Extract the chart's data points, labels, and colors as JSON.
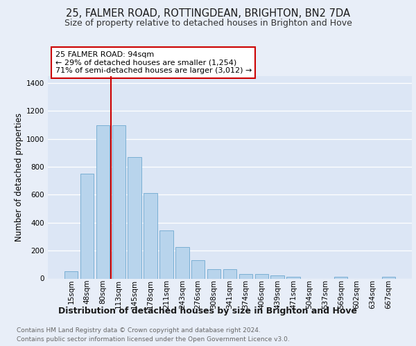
{
  "title": "25, FALMER ROAD, ROTTINGDEAN, BRIGHTON, BN2 7DA",
  "subtitle": "Size of property relative to detached houses in Brighton and Hove",
  "xlabel": "Distribution of detached houses by size in Brighton and Hove",
  "ylabel": "Number of detached properties",
  "footnote1": "Contains HM Land Registry data © Crown copyright and database right 2024.",
  "footnote2": "Contains public sector information licensed under the Open Government Licence v3.0.",
  "categories": [
    "15sqm",
    "48sqm",
    "80sqm",
    "113sqm",
    "145sqm",
    "178sqm",
    "211sqm",
    "243sqm",
    "276sqm",
    "308sqm",
    "341sqm",
    "374sqm",
    "406sqm",
    "439sqm",
    "471sqm",
    "504sqm",
    "537sqm",
    "569sqm",
    "602sqm",
    "634sqm",
    "667sqm"
  ],
  "values": [
    50,
    750,
    1100,
    1100,
    870,
    610,
    345,
    225,
    130,
    65,
    65,
    30,
    30,
    20,
    12,
    0,
    0,
    12,
    0,
    0,
    12
  ],
  "bar_color": "#b8d4ec",
  "bar_edge_color": "#7aafd4",
  "bar_linewidth": 0.7,
  "bg_color": "#e8eef8",
  "plot_bg_color": "#dce6f5",
  "grid_color": "#ffffff",
  "annotation_line1": "25 FALMER ROAD: 94sqm",
  "annotation_line2": "← 29% of detached houses are smaller (1,254)",
  "annotation_line3": "71% of semi-detached houses are larger (3,012) →",
  "annotation_box_color": "#cc0000",
  "vline_color": "#cc0000",
  "vline_x": 2.5,
  "ylim": [
    0,
    1450
  ],
  "yticks": [
    0,
    200,
    400,
    600,
    800,
    1000,
    1200,
    1400
  ],
  "title_fontsize": 10.5,
  "subtitle_fontsize": 9,
  "xlabel_fontsize": 9,
  "ylabel_fontsize": 8.5,
  "tick_fontsize": 7.5,
  "annotation_fontsize": 8,
  "footnote_fontsize": 6.5
}
